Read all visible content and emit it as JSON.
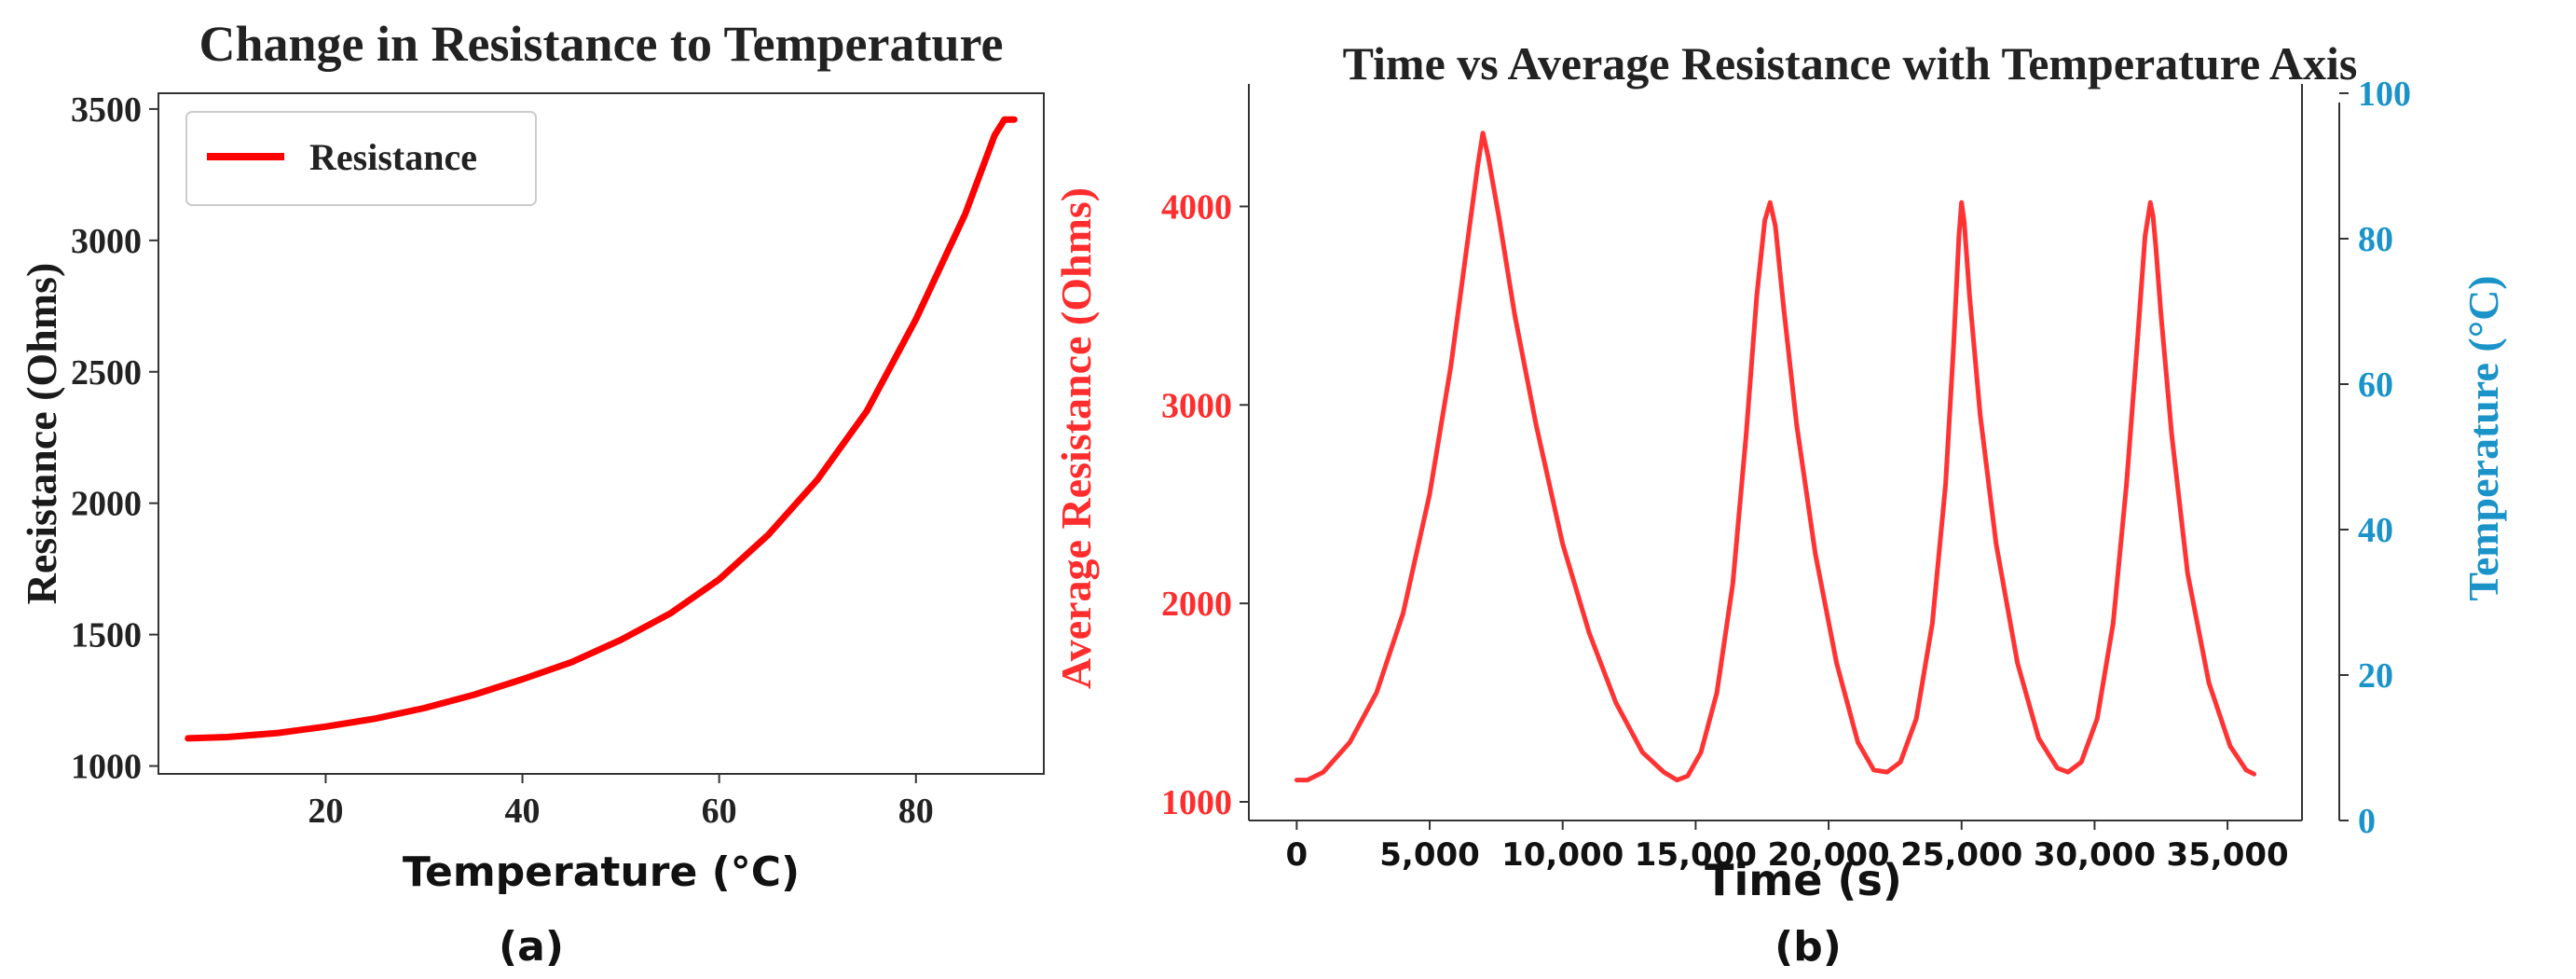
{
  "chart_data": [
    {
      "type": "line",
      "panel_label": "(a)",
      "title": "Change in Resistance to Temperature",
      "xlabel": "Temperature (°C)",
      "ylabel": "Resistance (Ohms)",
      "xlim": [
        3,
        93
      ],
      "ylim": [
        970,
        3560
      ],
      "xticks": [
        20,
        40,
        60,
        80
      ],
      "yticks": [
        1000,
        1500,
        2000,
        2500,
        3000,
        3500
      ],
      "legend": {
        "location": "upper-left",
        "entries": [
          "Resistance"
        ]
      },
      "series": [
        {
          "name": "Resistance",
          "color": "#ff0000",
          "x": [
            6,
            10,
            15,
            20,
            25,
            30,
            35,
            40,
            45,
            50,
            55,
            60,
            65,
            70,
            75,
            80,
            85,
            88,
            89,
            90
          ],
          "y": [
            1105,
            1110,
            1125,
            1150,
            1180,
            1220,
            1270,
            1330,
            1395,
            1480,
            1580,
            1710,
            1880,
            2090,
            2350,
            2700,
            3100,
            3400,
            3460,
            3460
          ]
        }
      ]
    },
    {
      "type": "line",
      "panel_label": "(b)",
      "title": "Time vs Average Resistance with Temperature Axis",
      "xlabel": "Time (s)",
      "ylabel": "Average Resistance (Ohms)",
      "y2label": "Temperature (°C)",
      "xlim": [
        -1800,
        37800
      ],
      "ylim": [
        1000,
        4500
      ],
      "y2lim": [
        0,
        100
      ],
      "xticks": [
        0,
        5000,
        10000,
        15000,
        20000,
        25000,
        30000,
        35000
      ],
      "xtick_labels": [
        "0",
        "5,000",
        "10,000",
        "15,000",
        "20,000",
        "25,000",
        "30,000",
        "35,000"
      ],
      "yticks": [
        1000,
        2000,
        3000,
        4000
      ],
      "y2ticks": [
        0,
        20,
        40,
        60,
        80,
        100
      ],
      "colors": {
        "left_axis": "#ff2d2d",
        "right_axis": "#1a93c9",
        "line": "#ff3333"
      },
      "series": [
        {
          "name": "Average Resistance",
          "color": "#ff3333",
          "x": [
            0,
            400,
            1000,
            2000,
            3000,
            4000,
            5000,
            5800,
            6400,
            6800,
            7000,
            7200,
            7600,
            8200,
            9000,
            10000,
            11000,
            12000,
            13000,
            13800,
            14300,
            14700,
            15200,
            15800,
            16400,
            16900,
            17300,
            17600,
            17800,
            18000,
            18300,
            18800,
            19500,
            20300,
            21100,
            21700,
            22200,
            22700,
            23300,
            23900,
            24400,
            24700,
            24900,
            25000,
            25100,
            25300,
            25700,
            26300,
            27100,
            27900,
            28600,
            29000,
            29500,
            30100,
            30700,
            31200,
            31600,
            31900,
            32100,
            32200,
            32300,
            32500,
            32900,
            33500,
            34300,
            35100,
            35700,
            36000
          ],
          "y": [
            1110,
            1110,
            1150,
            1300,
            1550,
            1950,
            2550,
            3200,
            3800,
            4200,
            4370,
            4250,
            3950,
            3450,
            2900,
            2300,
            1850,
            1500,
            1250,
            1150,
            1110,
            1130,
            1250,
            1550,
            2100,
            2850,
            3550,
            3930,
            4020,
            3900,
            3500,
            2900,
            2250,
            1700,
            1300,
            1160,
            1150,
            1200,
            1420,
            1900,
            2600,
            3300,
            3850,
            4020,
            3920,
            3550,
            2950,
            2300,
            1700,
            1320,
            1170,
            1150,
            1200,
            1420,
            1900,
            2600,
            3300,
            3850,
            4020,
            3950,
            3800,
            3450,
            2850,
            2150,
            1600,
            1280,
            1160,
            1140
          ]
        }
      ]
    }
  ]
}
